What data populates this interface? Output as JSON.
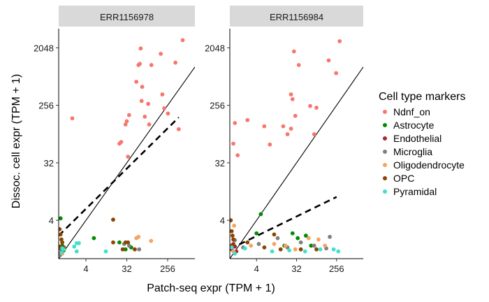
{
  "chart_data": {
    "type": "scatter",
    "xlabel": "Patch-seq expr (TPM + 1)",
    "ylabel": "Dissoc. cell expr (TPM + 1)",
    "scale": "log2",
    "xlim": [
      1,
      1024
    ],
    "ylim": [
      1,
      4096
    ],
    "x_ticks": [
      4,
      32,
      256
    ],
    "y_ticks": [
      4,
      32,
      256,
      2048
    ],
    "legend": {
      "title": "Cell type markers",
      "position": "right",
      "entries": [
        {
          "name": "Ndnf_on",
          "color": "#F8766D"
        },
        {
          "name": "Astrocyte",
          "color": "#008B00"
        },
        {
          "name": "Endothelial",
          "color": "#A52A2A"
        },
        {
          "name": "Microglia",
          "color": "#808080"
        },
        {
          "name": "Oligodendrocyte",
          "color": "#F4A460"
        },
        {
          "name": "OPC",
          "color": "#8B4500"
        },
        {
          "name": "Pyramidal",
          "color": "#40E0D0"
        }
      ]
    },
    "panels": [
      {
        "title": "ERR1156978",
        "dashed_fit": {
          "slope": 0.7,
          "intercept_log2": 1.2
        },
        "points": [
          {
            "x": 2,
            "y": 160,
            "g": "Ndnf_on"
          },
          {
            "x": 22,
            "y": 64,
            "g": "Ndnf_on"
          },
          {
            "x": 24,
            "y": 68,
            "g": "Ndnf_on"
          },
          {
            "x": 30,
            "y": 128,
            "g": "Ndnf_on"
          },
          {
            "x": 32,
            "y": 144,
            "g": "Ndnf_on"
          },
          {
            "x": 34,
            "y": 40,
            "g": "Ndnf_on"
          },
          {
            "x": 36,
            "y": 180,
            "g": "Ndnf_on"
          },
          {
            "x": 52,
            "y": 600,
            "g": "Ndnf_on"
          },
          {
            "x": 58,
            "y": 1100,
            "g": "Ndnf_on"
          },
          {
            "x": 62,
            "y": 1150,
            "g": "Ndnf_on"
          },
          {
            "x": 65,
            "y": 2000,
            "g": "Ndnf_on"
          },
          {
            "x": 68,
            "y": 300,
            "g": "Ndnf_on"
          },
          {
            "x": 70,
            "y": 500,
            "g": "Ndnf_on"
          },
          {
            "x": 80,
            "y": 170,
            "g": "Ndnf_on"
          },
          {
            "x": 95,
            "y": 270,
            "g": "Ndnf_on"
          },
          {
            "x": 100,
            "y": 128,
            "g": "Ndnf_on"
          },
          {
            "x": 112,
            "y": 1100,
            "g": "Ndnf_on"
          },
          {
            "x": 180,
            "y": 1650,
            "g": "Ndnf_on"
          },
          {
            "x": 195,
            "y": 380,
            "g": "Ndnf_on"
          },
          {
            "x": 215,
            "y": 230,
            "g": "Ndnf_on"
          },
          {
            "x": 260,
            "y": 190,
            "g": "Ndnf_on"
          },
          {
            "x": 380,
            "y": 1200,
            "g": "Ndnf_on"
          },
          {
            "x": 450,
            "y": 108,
            "g": "Ndnf_on"
          },
          {
            "x": 550,
            "y": 2700,
            "g": "Ndnf_on"
          },
          {
            "x": 1.1,
            "y": 4.3,
            "g": "Astrocyte"
          },
          {
            "x": 1.2,
            "y": 1.6,
            "g": "Astrocyte"
          },
          {
            "x": 1.3,
            "y": 1.35,
            "g": "Astrocyte"
          },
          {
            "x": 6,
            "y": 2.1,
            "g": "Astrocyte"
          },
          {
            "x": 22,
            "y": 1.8,
            "g": "Astrocyte"
          },
          {
            "x": 30,
            "y": 1.4,
            "g": "Astrocyte"
          },
          {
            "x": 40,
            "y": 1.5,
            "g": "Astrocyte"
          },
          {
            "x": 1.05,
            "y": 1.2,
            "g": "Endothelial"
          },
          {
            "x": 1.1,
            "y": 1.45,
            "g": "Endothelial"
          },
          {
            "x": 1.15,
            "y": 1.3,
            "g": "Endothelial"
          },
          {
            "x": 28,
            "y": 1.7,
            "g": "Microglia"
          },
          {
            "x": 36,
            "y": 1.6,
            "g": "Microglia"
          },
          {
            "x": 60,
            "y": 1.4,
            "g": "Microglia"
          },
          {
            "x": 1.1,
            "y": 1.15,
            "g": "Microglia"
          },
          {
            "x": 1.2,
            "y": 1.2,
            "g": "Oligodendrocyte"
          },
          {
            "x": 2.5,
            "y": 1.3,
            "g": "Oligodendrocyte"
          },
          {
            "x": 52,
            "y": 2.1,
            "g": "Oligodendrocyte"
          },
          {
            "x": 58,
            "y": 2.2,
            "g": "Oligodendrocyte"
          },
          {
            "x": 110,
            "y": 1.9,
            "g": "Oligodendrocyte"
          },
          {
            "x": 1.05,
            "y": 2.9,
            "g": "OPC"
          },
          {
            "x": 1.1,
            "y": 2.4,
            "g": "OPC"
          },
          {
            "x": 1.15,
            "y": 2.0,
            "g": "OPC"
          },
          {
            "x": 1.2,
            "y": 1.8,
            "g": "OPC"
          },
          {
            "x": 1.05,
            "y": 1.55,
            "g": "OPC"
          },
          {
            "x": 1.3,
            "y": 1.5,
            "g": "OPC"
          },
          {
            "x": 16,
            "y": 4.1,
            "g": "OPC"
          },
          {
            "x": 16,
            "y": 1.8,
            "g": "OPC"
          },
          {
            "x": 26,
            "y": 1.4,
            "g": "OPC"
          },
          {
            "x": 30,
            "y": 1.8,
            "g": "OPC"
          },
          {
            "x": 34,
            "y": 1.8,
            "g": "OPC"
          },
          {
            "x": 48,
            "y": 1.4,
            "g": "OPC"
          },
          {
            "x": 1.15,
            "y": 1.25,
            "g": "Pyramidal"
          },
          {
            "x": 1.2,
            "y": 1.45,
            "g": "Pyramidal"
          },
          {
            "x": 1.3,
            "y": 1.4,
            "g": "Pyramidal"
          },
          {
            "x": 2.2,
            "y": 1.55,
            "g": "Pyramidal"
          },
          {
            "x": 2.5,
            "y": 1.75,
            "g": "Pyramidal"
          },
          {
            "x": 2.8,
            "y": 1.75,
            "g": "Pyramidal"
          },
          {
            "x": 2.5,
            "y": 1.3,
            "g": "Pyramidal"
          },
          {
            "x": 11,
            "y": 1.3,
            "g": "Pyramidal"
          }
        ]
      },
      {
        "title": "ERR1156984",
        "dashed_fit": {
          "slope": 0.34,
          "intercept_log2": 0.5
        },
        "points": [
          {
            "x": 1.2,
            "y": 64,
            "g": "Ndnf_on"
          },
          {
            "x": 1.3,
            "y": 135,
            "g": "Ndnf_on"
          },
          {
            "x": 1.5,
            "y": 42,
            "g": "Ndnf_on"
          },
          {
            "x": 2.5,
            "y": 150,
            "g": "Ndnf_on"
          },
          {
            "x": 6,
            "y": 120,
            "g": "Ndnf_on"
          },
          {
            "x": 8,
            "y": 62,
            "g": "Ndnf_on"
          },
          {
            "x": 16,
            "y": 120,
            "g": "Ndnf_on"
          },
          {
            "x": 20,
            "y": 90,
            "g": "Ndnf_on"
          },
          {
            "x": 24,
            "y": 110,
            "g": "Ndnf_on"
          },
          {
            "x": 24,
            "y": 380,
            "g": "Ndnf_on"
          },
          {
            "x": 26,
            "y": 320,
            "g": "Ndnf_on"
          },
          {
            "x": 28,
            "y": 1800,
            "g": "Ndnf_on"
          },
          {
            "x": 30,
            "y": 175,
            "g": "Ndnf_on"
          },
          {
            "x": 36,
            "y": 1100,
            "g": "Ndnf_on"
          },
          {
            "x": 65,
            "y": 250,
            "g": "Ndnf_on"
          },
          {
            "x": 80,
            "y": 90,
            "g": "Ndnf_on"
          },
          {
            "x": 90,
            "y": 235,
            "g": "Ndnf_on"
          },
          {
            "x": 170,
            "y": 1300,
            "g": "Ndnf_on"
          },
          {
            "x": 250,
            "y": 820,
            "g": "Ndnf_on"
          },
          {
            "x": 300,
            "y": 2600,
            "g": "Ndnf_on"
          },
          {
            "x": 5,
            "y": 5,
            "g": "Astrocyte"
          },
          {
            "x": 4,
            "y": 2.5,
            "g": "Astrocyte"
          },
          {
            "x": 26,
            "y": 2.5,
            "g": "Astrocyte"
          },
          {
            "x": 34,
            "y": 2.1,
            "g": "Astrocyte"
          },
          {
            "x": 17,
            "y": 1.6,
            "g": "Astrocyte"
          },
          {
            "x": 52,
            "y": 2.3,
            "g": "Astrocyte"
          },
          {
            "x": 68,
            "y": 1.6,
            "g": "Astrocyte"
          },
          {
            "x": 1.1,
            "y": 1.4,
            "g": "Endothelial"
          },
          {
            "x": 1.2,
            "y": 1.7,
            "g": "Endothelial"
          },
          {
            "x": 1.3,
            "y": 1.55,
            "g": "Endothelial"
          },
          {
            "x": 1.4,
            "y": 1.3,
            "g": "Endothelial"
          },
          {
            "x": 1.3,
            "y": 1.95,
            "g": "Microglia"
          },
          {
            "x": 2.0,
            "y": 1.5,
            "g": "Microglia"
          },
          {
            "x": 4.5,
            "y": 1.7,
            "g": "Microglia"
          },
          {
            "x": 12,
            "y": 2.1,
            "g": "Microglia"
          },
          {
            "x": 20,
            "y": 1.5,
            "g": "Microglia"
          },
          {
            "x": 40,
            "y": 1.8,
            "g": "Microglia"
          },
          {
            "x": 80,
            "y": 1.6,
            "g": "Microglia"
          },
          {
            "x": 150,
            "y": 1.45,
            "g": "Microglia"
          },
          {
            "x": 180,
            "y": 2.2,
            "g": "Microglia"
          },
          {
            "x": 1.2,
            "y": 1.3,
            "g": "Oligodendrocyte"
          },
          {
            "x": 1.25,
            "y": 3.3,
            "g": "Oligodendrocyte"
          },
          {
            "x": 3,
            "y": 1.6,
            "g": "Oligodendrocyte"
          },
          {
            "x": 10,
            "y": 1.7,
            "g": "Oligodendrocyte"
          },
          {
            "x": 18,
            "y": 1.6,
            "g": "Oligodendrocyte"
          },
          {
            "x": 30,
            "y": 1.4,
            "g": "Oligodendrocyte"
          },
          {
            "x": 60,
            "y": 2.1,
            "g": "Oligodendrocyte"
          },
          {
            "x": 100,
            "y": 2.0,
            "g": "Oligodendrocyte"
          },
          {
            "x": 140,
            "y": 1.6,
            "g": "Oligodendrocyte"
          },
          {
            "x": 1.05,
            "y": 4.0,
            "g": "OPC"
          },
          {
            "x": 1.1,
            "y": 2.7,
            "g": "OPC"
          },
          {
            "x": 1.15,
            "y": 2.3,
            "g": "OPC"
          },
          {
            "x": 1.2,
            "y": 2.0,
            "g": "OPC"
          },
          {
            "x": 1.1,
            "y": 1.6,
            "g": "OPC"
          },
          {
            "x": 2.5,
            "y": 1.8,
            "g": "OPC"
          },
          {
            "x": 6,
            "y": 1.5,
            "g": "OPC"
          },
          {
            "x": 10,
            "y": 2.4,
            "g": "OPC"
          },
          {
            "x": 14,
            "y": 1.4,
            "g": "OPC"
          },
          {
            "x": 40,
            "y": 1.4,
            "g": "OPC"
          },
          {
            "x": 90,
            "y": 1.4,
            "g": "OPC"
          },
          {
            "x": 1.1,
            "y": 1.5,
            "g": "Pyramidal"
          },
          {
            "x": 1.3,
            "y": 1.2,
            "g": "Pyramidal"
          },
          {
            "x": 2.2,
            "y": 1.45,
            "g": "Pyramidal"
          },
          {
            "x": 9,
            "y": 1.3,
            "g": "Pyramidal"
          },
          {
            "x": 22,
            "y": 1.35,
            "g": "Pyramidal"
          },
          {
            "x": 50,
            "y": 1.3,
            "g": "Pyramidal"
          },
          {
            "x": 110,
            "y": 1.4,
            "g": "Pyramidal"
          },
          {
            "x": 220,
            "y": 1.4,
            "g": "Pyramidal"
          },
          {
            "x": 280,
            "y": 1.3,
            "g": "Pyramidal"
          }
        ]
      }
    ]
  }
}
